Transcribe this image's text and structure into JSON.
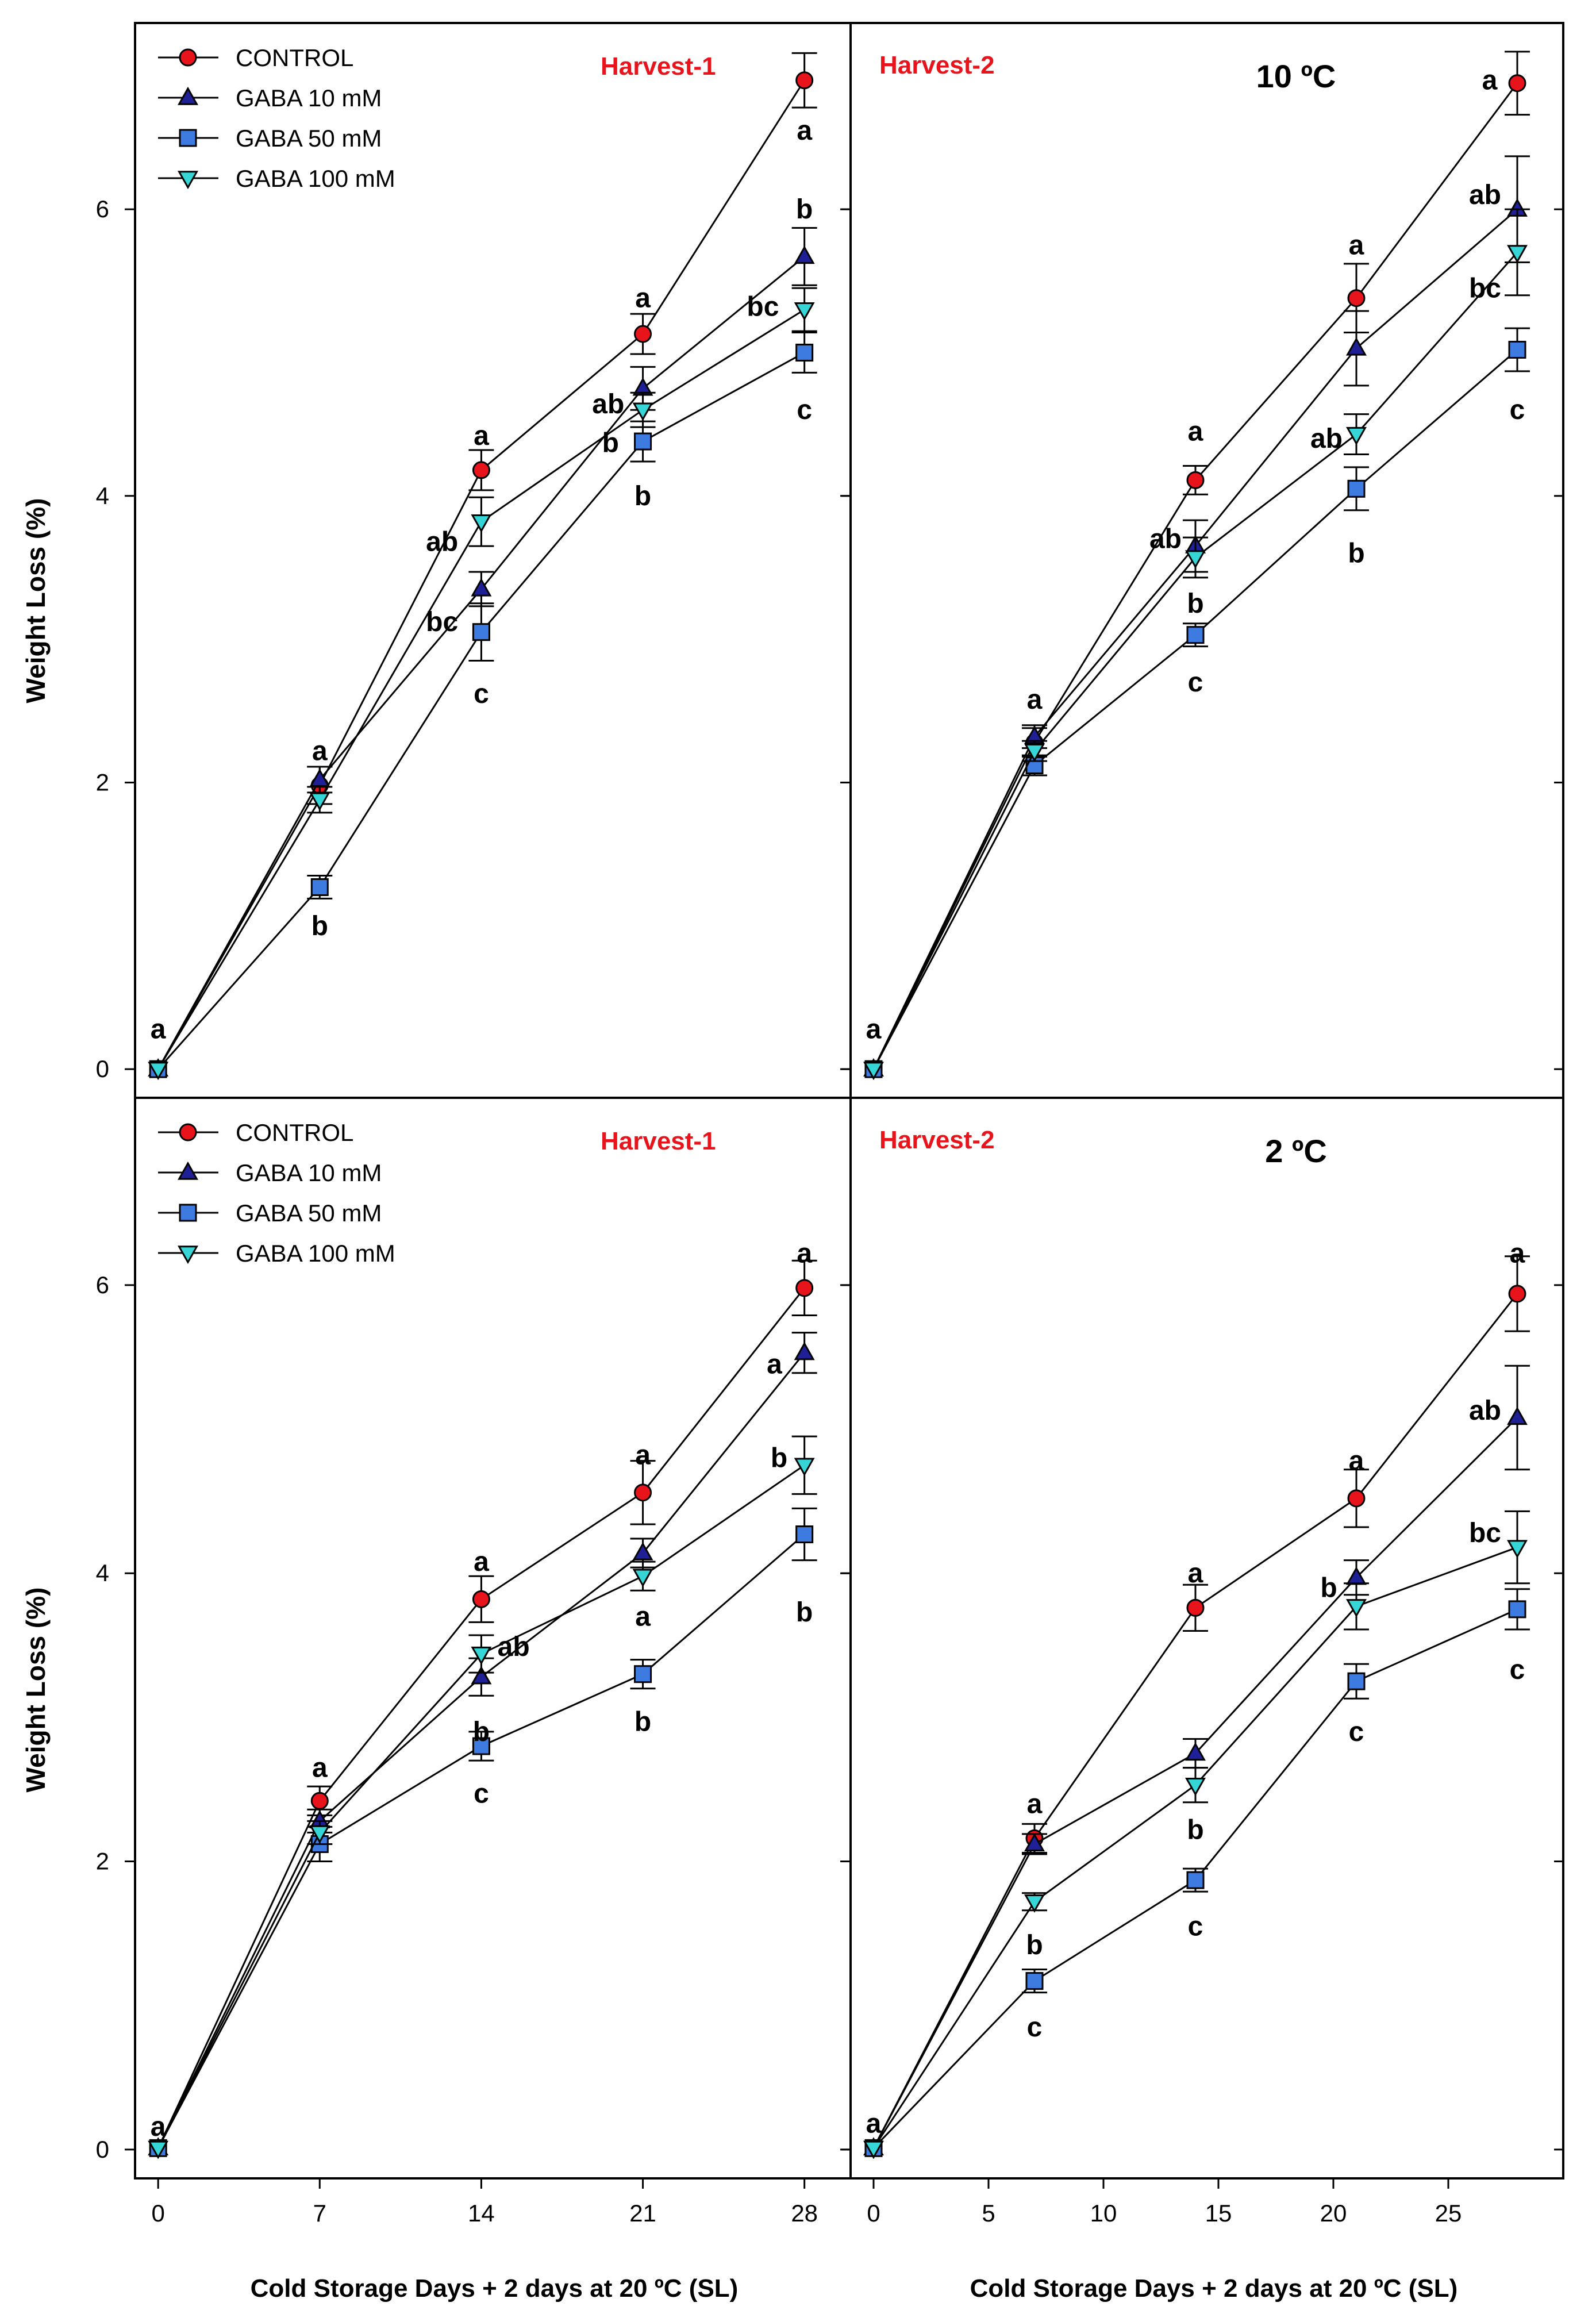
{
  "y_axis_label": "Weight Loss (%)",
  "x_axis_label": "Cold Storage Days + 2 days at 20 ºC (SL)",
  "legend": [
    {
      "name": "CONTROL",
      "marker": "circle",
      "color": "#e8141c"
    },
    {
      "name": "GABA 10 mM",
      "marker": "triangle-up",
      "color": "#1f1f96"
    },
    {
      "name": "GABA 50 mM",
      "marker": "square",
      "color": "#3e7be0"
    },
    {
      "name": "GABA 100 mM",
      "marker": "triangle-down",
      "color": "#36d6d6"
    }
  ],
  "chart_data": [
    {
      "type": "line",
      "title": "Harvest-1",
      "temperature": "",
      "xlabel": "",
      "ylabel": "Weight Loss (%)",
      "x": [
        0,
        7,
        14,
        21,
        28
      ],
      "xlim": [
        -1,
        30
      ],
      "ylim": [
        -0.2,
        7.3
      ],
      "xticks": [],
      "yticks": [
        0,
        2,
        4,
        6
      ],
      "series": [
        {
          "name": "CONTROL",
          "values": [
            0,
            1.98,
            4.18,
            5.13,
            6.9
          ],
          "errors": [
            0,
            0.13,
            0.14,
            0.14,
            0.19
          ]
        },
        {
          "name": "GABA 10 mM",
          "values": [
            0,
            2.02,
            3.35,
            4.75,
            5.67
          ],
          "errors": [
            0,
            0.09,
            0.12,
            0.15,
            0.2
          ]
        },
        {
          "name": "GABA 50 mM",
          "values": [
            0,
            1.27,
            3.05,
            4.38,
            5.0
          ],
          "errors": [
            0,
            0.08,
            0.2,
            0.14,
            0.14
          ]
        },
        {
          "name": "GABA 100 mM",
          "values": [
            0,
            1.88,
            3.82,
            4.6,
            5.3
          ],
          "errors": [
            0,
            0.09,
            0.17,
            0.12,
            0.15
          ]
        }
      ],
      "letters": [
        {
          "text": "a",
          "x": 0,
          "y": 0.28
        },
        {
          "text": "a",
          "x": 7,
          "y": 2.22
        },
        {
          "text": "b",
          "x": 7,
          "y": 1.0
        },
        {
          "text": "a",
          "x": 14,
          "y": 4.42
        },
        {
          "text": "ab",
          "x": 12.3,
          "y": 3.68
        },
        {
          "text": "bc",
          "x": 12.3,
          "y": 3.12
        },
        {
          "text": "c",
          "x": 14,
          "y": 2.62
        },
        {
          "text": "a",
          "x": 21,
          "y": 5.38
        },
        {
          "text": "ab",
          "x": 19.5,
          "y": 4.64
        },
        {
          "text": "b",
          "x": 19.6,
          "y": 4.37
        },
        {
          "text": "b",
          "x": 21,
          "y": 4.0
        },
        {
          "text": "a",
          "x": 28,
          "y": 6.55
        },
        {
          "text": "b",
          "x": 28,
          "y": 6.0
        },
        {
          "text": "bc",
          "x": 26.2,
          "y": 5.32
        },
        {
          "text": "c",
          "x": 28,
          "y": 4.6
        }
      ]
    },
    {
      "type": "line",
      "title": "Harvest-2",
      "temperature": "10 ºC",
      "xlabel": "",
      "ylabel": "",
      "x": [
        0,
        7,
        14,
        21,
        28
      ],
      "xlim": [
        -1,
        30
      ],
      "ylim": [
        -0.2,
        7.3
      ],
      "xticks": [],
      "yticks": [],
      "series": [
        {
          "name": "CONTROL",
          "values": [
            0,
            2.28,
            4.11,
            5.38,
            6.88
          ],
          "errors": [
            0,
            0.1,
            0.1,
            0.24,
            0.22
          ]
        },
        {
          "name": "GABA 10 mM",
          "values": [
            0,
            2.32,
            3.65,
            5.03,
            6.0
          ],
          "errors": [
            0,
            0.08,
            0.18,
            0.26,
            0.37
          ]
        },
        {
          "name": "GABA 50 mM",
          "values": [
            0,
            2.12,
            3.03,
            4.05,
            5.02
          ],
          "errors": [
            0,
            0.07,
            0.08,
            0.15,
            0.15
          ]
        },
        {
          "name": "GABA 100 mM",
          "values": [
            0,
            2.22,
            3.57,
            4.43,
            5.7
          ],
          "errors": [
            0,
            0.07,
            0.14,
            0.14,
            0.3
          ]
        }
      ],
      "letters": [
        {
          "text": "a",
          "x": 0,
          "y": 0.28
        },
        {
          "text": "a",
          "x": 7,
          "y": 2.58
        },
        {
          "text": "a",
          "x": 14,
          "y": 4.45
        },
        {
          "text": "ab",
          "x": 12.7,
          "y": 3.7
        },
        {
          "text": "b",
          "x": 14,
          "y": 3.25
        },
        {
          "text": "c",
          "x": 14,
          "y": 2.7
        },
        {
          "text": "a",
          "x": 21,
          "y": 5.75
        },
        {
          "text": "ab",
          "x": 19.7,
          "y": 4.4
        },
        {
          "text": "b",
          "x": 21,
          "y": 3.6
        },
        {
          "text": "a",
          "x": 26.8,
          "y": 6.9
        },
        {
          "text": "ab",
          "x": 26.6,
          "y": 6.1
        },
        {
          "text": "bc",
          "x": 26.6,
          "y": 5.45
        },
        {
          "text": "c",
          "x": 28,
          "y": 4.6
        }
      ]
    },
    {
      "type": "line",
      "title": "Harvest-1",
      "temperature": "",
      "xlabel": "Cold Storage Days + 2 days at 20 ºC (SL)",
      "ylabel": "Weight Loss (%)",
      "x": [
        0,
        7,
        14,
        21,
        28
      ],
      "xlim": [
        -1,
        30
      ],
      "ylim": [
        -0.2,
        7.3
      ],
      "xticks": [
        0,
        7,
        14,
        21,
        28
      ],
      "yticks": [
        0,
        2,
        4,
        6
      ],
      "series": [
        {
          "name": "CONTROL",
          "values": [
            0.01,
            2.42,
            3.82,
            4.56,
            5.98
          ],
          "errors": [
            0,
            0.1,
            0.16,
            0.22,
            0.19
          ]
        },
        {
          "name": "GABA 10 mM",
          "values": [
            0.01,
            2.28,
            3.28,
            4.14,
            5.53
          ],
          "errors": [
            0,
            0.08,
            0.13,
            0.1,
            0.14
          ]
        },
        {
          "name": "GABA 50 mM",
          "values": [
            0.01,
            2.12,
            2.8,
            3.3,
            4.27
          ],
          "errors": [
            0,
            0.12,
            0.1,
            0.1,
            0.18
          ]
        },
        {
          "name": "GABA 100 mM",
          "values": [
            0.01,
            2.2,
            3.44,
            3.98,
            4.75
          ],
          "errors": [
            0,
            0.08,
            0.13,
            0.1,
            0.2
          ]
        }
      ],
      "letters": [
        {
          "text": "a",
          "x": 0,
          "y": 0.16
        },
        {
          "text": "a",
          "x": 7,
          "y": 2.65
        },
        {
          "text": "a",
          "x": 14,
          "y": 4.08
        },
        {
          "text": "ab",
          "x": 15.4,
          "y": 3.49
        },
        {
          "text": "b",
          "x": 14,
          "y": 2.9
        },
        {
          "text": "c",
          "x": 14,
          "y": 2.47
        },
        {
          "text": "a",
          "x": 21,
          "y": 4.82
        },
        {
          "text": "a",
          "x": 21,
          "y": 3.7
        },
        {
          "text": "b",
          "x": 21,
          "y": 2.97
        },
        {
          "text": "a",
          "x": 28,
          "y": 6.22
        },
        {
          "text": "a",
          "x": 26.7,
          "y": 5.45
        },
        {
          "text": "b",
          "x": 26.9,
          "y": 4.8
        },
        {
          "text": "b",
          "x": 28,
          "y": 3.73
        }
      ]
    },
    {
      "type": "line",
      "title": "Harvest-2",
      "temperature": "2 ºC",
      "xlabel": "Cold Storage Days + 2 days at 20 ºC (SL)",
      "ylabel": "",
      "x": [
        0,
        7,
        14,
        21,
        28
      ],
      "xlim": [
        -1,
        30
      ],
      "ylim": [
        -0.2,
        7.3
      ],
      "xticks": [
        0,
        5,
        10,
        15,
        20,
        25
      ],
      "yticks": [],
      "series": [
        {
          "name": "CONTROL",
          "values": [
            0.01,
            2.16,
            3.76,
            4.52,
            5.94
          ],
          "errors": [
            0,
            0.1,
            0.16,
            0.2,
            0.26
          ]
        },
        {
          "name": "GABA 10 mM",
          "values": [
            0.01,
            2.12,
            2.75,
            3.97,
            5.08
          ],
          "errors": [
            0,
            0.07,
            0.1,
            0.12,
            0.36
          ]
        },
        {
          "name": "GABA 50 mM",
          "values": [
            0.01,
            1.17,
            1.87,
            3.25,
            3.75
          ],
          "errors": [
            0,
            0.08,
            0.08,
            0.12,
            0.14
          ]
        },
        {
          "name": "GABA 100 mM",
          "values": [
            0.01,
            1.72,
            2.53,
            3.77,
            4.18
          ],
          "errors": [
            0,
            0.06,
            0.12,
            0.16,
            0.25
          ]
        }
      ],
      "letters": [
        {
          "text": "a",
          "x": 0,
          "y": 0.18
        },
        {
          "text": "a",
          "x": 7,
          "y": 2.4
        },
        {
          "text": "b",
          "x": 7,
          "y": 1.42
        },
        {
          "text": "c",
          "x": 7,
          "y": 0.85
        },
        {
          "text": "a",
          "x": 14,
          "y": 4.0
        },
        {
          "text": "b",
          "x": 14,
          "y": 2.22
        },
        {
          "text": "c",
          "x": 14,
          "y": 1.55
        },
        {
          "text": "a",
          "x": 21,
          "y": 4.78
        },
        {
          "text": "b",
          "x": 19.8,
          "y": 3.9
        },
        {
          "text": "c",
          "x": 21,
          "y": 2.9
        },
        {
          "text": "a",
          "x": 28,
          "y": 6.22
        },
        {
          "text": "ab",
          "x": 26.6,
          "y": 5.13
        },
        {
          "text": "bc",
          "x": 26.6,
          "y": 4.28
        },
        {
          "text": "c",
          "x": 28,
          "y": 3.33
        }
      ]
    }
  ]
}
